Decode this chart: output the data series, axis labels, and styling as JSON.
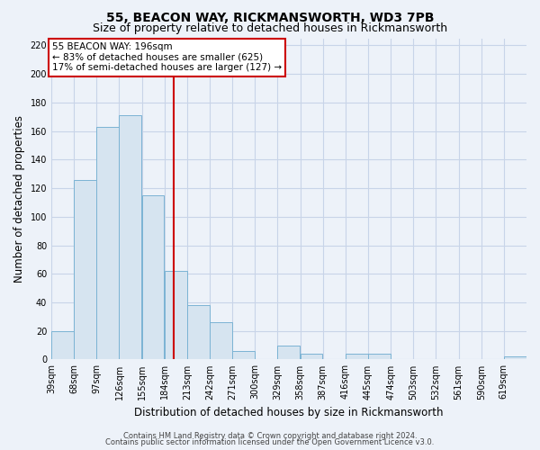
{
  "title": "55, BEACON WAY, RICKMANSWORTH, WD3 7PB",
  "subtitle": "Size of property relative to detached houses in Rickmansworth",
  "xlabel": "Distribution of detached houses by size in Rickmansworth",
  "ylabel": "Number of detached properties",
  "bin_labels": [
    "39sqm",
    "68sqm",
    "97sqm",
    "126sqm",
    "155sqm",
    "184sqm",
    "213sqm",
    "242sqm",
    "271sqm",
    "300sqm",
    "329sqm",
    "358sqm",
    "387sqm",
    "416sqm",
    "445sqm",
    "474sqm",
    "503sqm",
    "532sqm",
    "561sqm",
    "590sqm",
    "619sqm"
  ],
  "bin_edges": [
    39,
    68,
    97,
    126,
    155,
    184,
    213,
    242,
    271,
    300,
    329,
    358,
    387,
    416,
    445,
    474,
    503,
    532,
    561,
    590,
    619,
    648
  ],
  "counts": [
    20,
    126,
    163,
    171,
    115,
    62,
    38,
    26,
    6,
    0,
    10,
    4,
    0,
    4,
    4,
    0,
    0,
    0,
    0,
    0,
    2
  ],
  "bar_color": "#d6e4f0",
  "bar_edge_color": "#7bb3d4",
  "property_value": 196,
  "vline_color": "#cc0000",
  "annotation_line1": "55 BEACON WAY: 196sqm",
  "annotation_line2": "← 83% of detached houses are smaller (625)",
  "annotation_line3": "17% of semi-detached houses are larger (127) →",
  "annotation_box_color": "#ffffff",
  "annotation_box_edge": "#cc0000",
  "ylim": [
    0,
    225
  ],
  "yticks": [
    0,
    20,
    40,
    60,
    80,
    100,
    120,
    140,
    160,
    180,
    200,
    220
  ],
  "footer1": "Contains HM Land Registry data © Crown copyright and database right 2024.",
  "footer2": "Contains public sector information licensed under the Open Government Licence v3.0.",
  "bg_color": "#edf2f9",
  "plot_bg_color": "#edf2f9",
  "grid_color": "#c8d4e8",
  "title_fontsize": 10,
  "subtitle_fontsize": 9,
  "label_fontsize": 8.5,
  "tick_fontsize": 7,
  "annotation_fontsize": 7.5,
  "footer_fontsize": 6
}
